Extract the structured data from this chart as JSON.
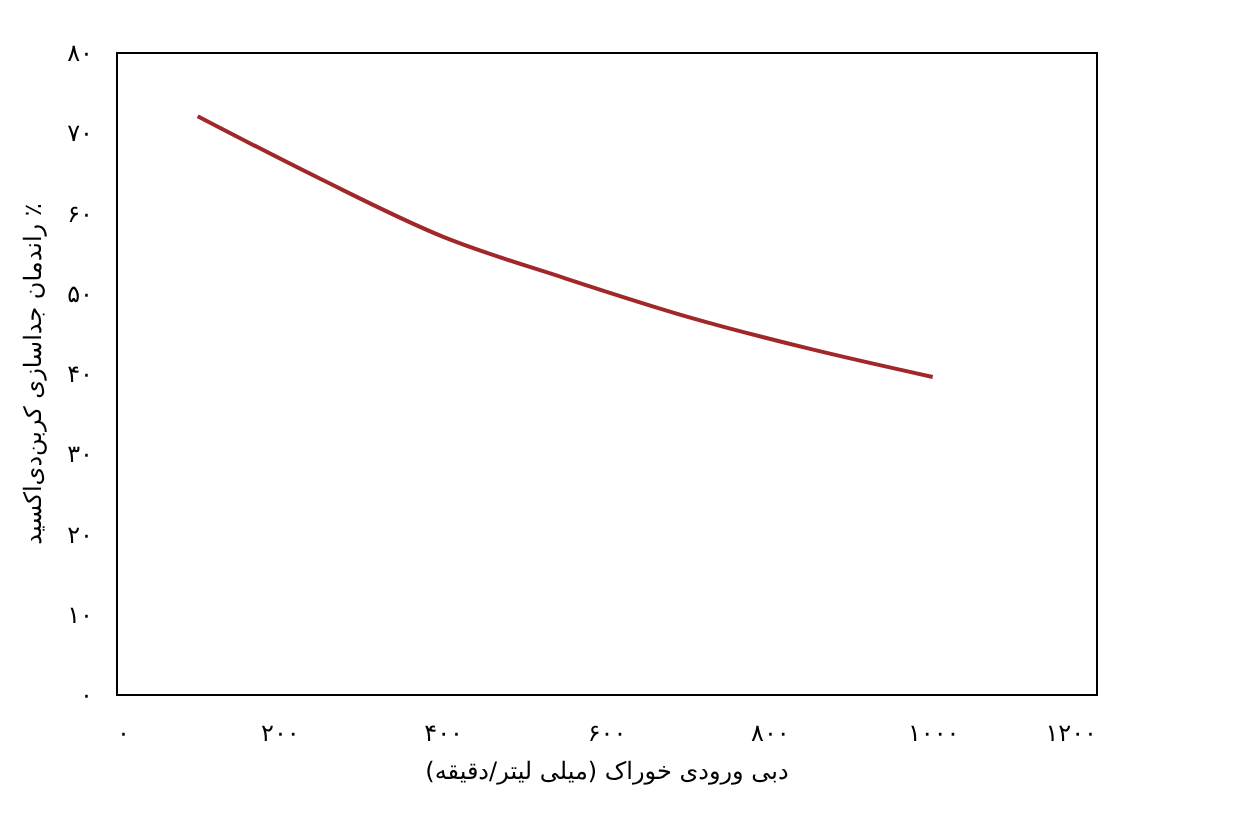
{
  "chart_data": {
    "type": "line",
    "xlabel": "دبی ورودی خوراک (میلی لیتر/دقیقه)",
    "ylabel": "راندمان جداسازی کربن‌دی‌اکسید ٪",
    "x": [
      100,
      250,
      400,
      550,
      700,
      850,
      1000
    ],
    "series": [
      {
        "color": "#a0282a",
        "values": [
          72,
          64.2,
          57,
          51.8,
          47,
          43,
          39.5
        ]
      }
    ],
    "xlim": [
      0,
      1200
    ],
    "ylim": [
      0,
      80
    ],
    "xticks": [
      {
        "value": 0,
        "label": "۰"
      },
      {
        "value": 200,
        "label": "۲۰۰"
      },
      {
        "value": 400,
        "label": "۴۰۰"
      },
      {
        "value": 600,
        "label": "۶۰۰"
      },
      {
        "value": 800,
        "label": "۸۰۰"
      },
      {
        "value": 1000,
        "label": "۱۰۰۰"
      },
      {
        "value": 1200,
        "label": "۱۲۰۰"
      }
    ],
    "yticks": [
      {
        "value": 0,
        "label": "۰"
      },
      {
        "value": 10,
        "label": "۱۰"
      },
      {
        "value": 20,
        "label": "۲۰"
      },
      {
        "value": 30,
        "label": "۳۰"
      },
      {
        "value": 40,
        "label": "۴۰"
      },
      {
        "value": 50,
        "label": "۵۰"
      },
      {
        "value": 60,
        "label": "۶۰"
      },
      {
        "value": 70,
        "label": "۷۰"
      },
      {
        "value": 80,
        "label": "۸۰"
      }
    ],
    "grid": false,
    "marker": "none",
    "line_style": "solid"
  }
}
